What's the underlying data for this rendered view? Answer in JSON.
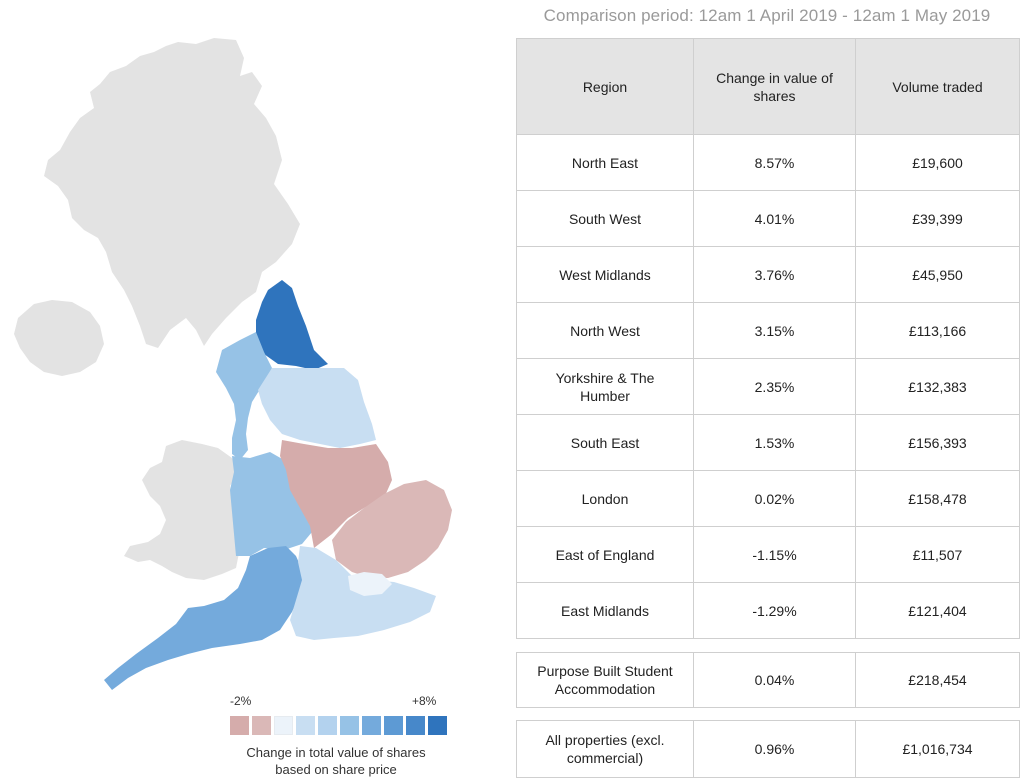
{
  "period_title": "Comparison period: 12am 1 April 2019 - 12am 1 May 2019",
  "colors": {
    "land": "#e3e3e3",
    "neg2": "#d5acab",
    "neg1": "#dab8b7",
    "zero": "#ecf3fa",
    "pos1": "#c8def2",
    "pos2": "#b3d2ee",
    "pos3": "#96c2e6",
    "pos4": "#74aadc",
    "pos5": "#5d9ad4",
    "pos6": "#4788ca",
    "pos8": "#2f74bd"
  },
  "map": {
    "regions": [
      {
        "name": "North East",
        "change": 8.57,
        "color": "#2f74bd"
      },
      {
        "name": "South West",
        "change": 4.01,
        "color": "#74aadc"
      },
      {
        "name": "West Midlands",
        "change": 3.76,
        "color": "#96c2e6"
      },
      {
        "name": "North West",
        "change": 3.15,
        "color": "#96c2e6"
      },
      {
        "name": "Yorkshire & The Humber",
        "change": 2.35,
        "color": "#c8def2"
      },
      {
        "name": "South East",
        "change": 1.53,
        "color": "#c8def2"
      },
      {
        "name": "London",
        "change": 0.02,
        "color": "#ecf3fa"
      },
      {
        "name": "East of England",
        "change": -1.15,
        "color": "#dab8b7"
      },
      {
        "name": "East Midlands",
        "change": -1.29,
        "color": "#d5acab"
      }
    ]
  },
  "legend": {
    "min_label": "-2%",
    "max_label": "+8%",
    "swatches": [
      "#d5acab",
      "#dab8b7",
      "#ecf3fa",
      "#c8def2",
      "#b3d2ee",
      "#96c2e6",
      "#74aadc",
      "#5d9ad4",
      "#4788ca",
      "#2f74bd"
    ],
    "caption_line1": "Change in total value of shares",
    "caption_line2": "based on share price"
  },
  "chart_data": {
    "type": "table",
    "columns": [
      "Region",
      "Change in value of shares",
      "Volume traded"
    ],
    "rows": [
      [
        "North East",
        "8.57%",
        "£19,600"
      ],
      [
        "South West",
        "4.01%",
        "£39,399"
      ],
      [
        "West Midlands",
        "3.76%",
        "£45,950"
      ],
      [
        "North West",
        "3.15%",
        "£113,166"
      ],
      [
        "Yorkshire & The Humber",
        "2.35%",
        "£132,383"
      ],
      [
        "South East",
        "1.53%",
        "£156,393"
      ],
      [
        "London",
        "0.02%",
        "£158,478"
      ],
      [
        "East of England",
        "-1.15%",
        "£11,507"
      ],
      [
        "East Midlands",
        "-1.29%",
        "£121,404"
      ]
    ],
    "pbsa_row": [
      "Purpose Built Student Accommodation",
      "0.04%",
      "£218,454"
    ],
    "all_row": [
      "All properties (excl. commercial)",
      "0.96%",
      "£1,016,734"
    ]
  }
}
